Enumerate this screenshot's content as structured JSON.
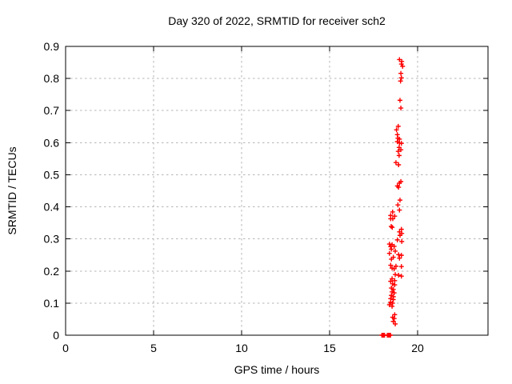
{
  "chart_data": {
    "type": "scatter",
    "title": "Day 320 of 2022, SRMTID for receiver sch2",
    "xlabel": "GPS time / hours",
    "ylabel": "SRMTID / TECUs",
    "xlim": [
      0,
      24
    ],
    "ylim": [
      0,
      0.9
    ],
    "grid": true,
    "legend": "none",
    "marker": "plus",
    "marker_color": "#ff0000",
    "grid_color": "#b5b5b5",
    "axis_color": "#000000",
    "xticks": [
      {
        "value": 0,
        "label": "0"
      },
      {
        "value": 5,
        "label": "5"
      },
      {
        "value": 10,
        "label": "10"
      },
      {
        "value": 15,
        "label": "15"
      },
      {
        "value": 20,
        "label": "20"
      }
    ],
    "yticks": [
      {
        "value": 0.0,
        "label": "0"
      },
      {
        "value": 0.1,
        "label": "0.1"
      },
      {
        "value": 0.2,
        "label": "0.2"
      },
      {
        "value": 0.3,
        "label": "0.3"
      },
      {
        "value": 0.4,
        "label": "0.4"
      },
      {
        "value": 0.5,
        "label": "0.5"
      },
      {
        "value": 0.6,
        "label": "0.6"
      },
      {
        "value": 0.7,
        "label": "0.7"
      },
      {
        "value": 0.8,
        "label": "0.8"
      },
      {
        "value": 0.9,
        "label": "0.9"
      }
    ],
    "series": [
      {
        "name": "SRMTID",
        "points": [
          [
            18.97,
            0.859
          ],
          [
            19.1,
            0.853
          ],
          [
            19.08,
            0.845
          ],
          [
            19.15,
            0.838
          ],
          [
            19.05,
            0.816
          ],
          [
            19.08,
            0.802
          ],
          [
            19.03,
            0.792
          ],
          [
            19.0,
            0.732
          ],
          [
            19.05,
            0.708
          ],
          [
            18.9,
            0.651
          ],
          [
            18.8,
            0.64
          ],
          [
            18.85,
            0.625
          ],
          [
            18.88,
            0.614
          ],
          [
            18.97,
            0.611
          ],
          [
            18.85,
            0.603
          ],
          [
            18.97,
            0.599
          ],
          [
            19.08,
            0.598
          ],
          [
            18.95,
            0.585
          ],
          [
            19.05,
            0.578
          ],
          [
            18.9,
            0.573
          ],
          [
            18.95,
            0.56
          ],
          [
            18.77,
            0.538
          ],
          [
            18.92,
            0.531
          ],
          [
            19.05,
            0.479
          ],
          [
            18.97,
            0.474
          ],
          [
            18.85,
            0.465
          ],
          [
            18.92,
            0.461
          ],
          [
            19.0,
            0.421
          ],
          [
            18.88,
            0.406
          ],
          [
            18.97,
            0.39
          ],
          [
            18.58,
            0.384
          ],
          [
            18.47,
            0.373
          ],
          [
            18.7,
            0.371
          ],
          [
            18.59,
            0.363
          ],
          [
            18.47,
            0.363
          ],
          [
            18.5,
            0.339
          ],
          [
            18.56,
            0.336
          ],
          [
            19.08,
            0.33
          ],
          [
            18.97,
            0.322
          ],
          [
            19.1,
            0.317
          ],
          [
            19.0,
            0.311
          ],
          [
            18.85,
            0.297
          ],
          [
            19.1,
            0.292
          ],
          [
            18.4,
            0.284
          ],
          [
            18.55,
            0.282
          ],
          [
            18.67,
            0.277
          ],
          [
            18.47,
            0.276
          ],
          [
            18.51,
            0.268
          ],
          [
            18.73,
            0.262
          ],
          [
            18.4,
            0.255
          ],
          [
            18.92,
            0.251
          ],
          [
            19.08,
            0.249
          ],
          [
            18.62,
            0.243
          ],
          [
            18.97,
            0.24
          ],
          [
            18.51,
            0.237
          ],
          [
            18.47,
            0.218
          ],
          [
            18.77,
            0.215
          ],
          [
            19.08,
            0.214
          ],
          [
            18.55,
            0.209
          ],
          [
            18.67,
            0.207
          ],
          [
            18.73,
            0.189
          ],
          [
            18.92,
            0.187
          ],
          [
            19.08,
            0.184
          ],
          [
            18.55,
            0.176
          ],
          [
            18.7,
            0.17
          ],
          [
            18.47,
            0.168
          ],
          [
            18.58,
            0.16
          ],
          [
            18.7,
            0.157
          ],
          [
            18.51,
            0.147
          ],
          [
            18.62,
            0.143
          ],
          [
            18.55,
            0.135
          ],
          [
            18.67,
            0.132
          ],
          [
            18.51,
            0.124
          ],
          [
            18.62,
            0.12
          ],
          [
            18.47,
            0.114
          ],
          [
            18.62,
            0.111
          ],
          [
            18.47,
            0.103
          ],
          [
            18.58,
            0.1
          ],
          [
            18.4,
            0.095
          ],
          [
            18.55,
            0.09
          ],
          [
            18.7,
            0.064
          ],
          [
            18.58,
            0.056
          ],
          [
            18.67,
            0.052
          ],
          [
            18.62,
            0.043
          ],
          [
            18.73,
            0.035
          ],
          [
            17.97,
            0.0
          ],
          [
            18.02,
            0.0
          ],
          [
            18.07,
            0.0
          ],
          [
            18.12,
            0.0
          ],
          [
            18.28,
            0.0
          ],
          [
            18.34,
            0.0
          ],
          [
            18.4,
            0.0
          ],
          [
            18.46,
            0.0
          ]
        ]
      }
    ]
  }
}
